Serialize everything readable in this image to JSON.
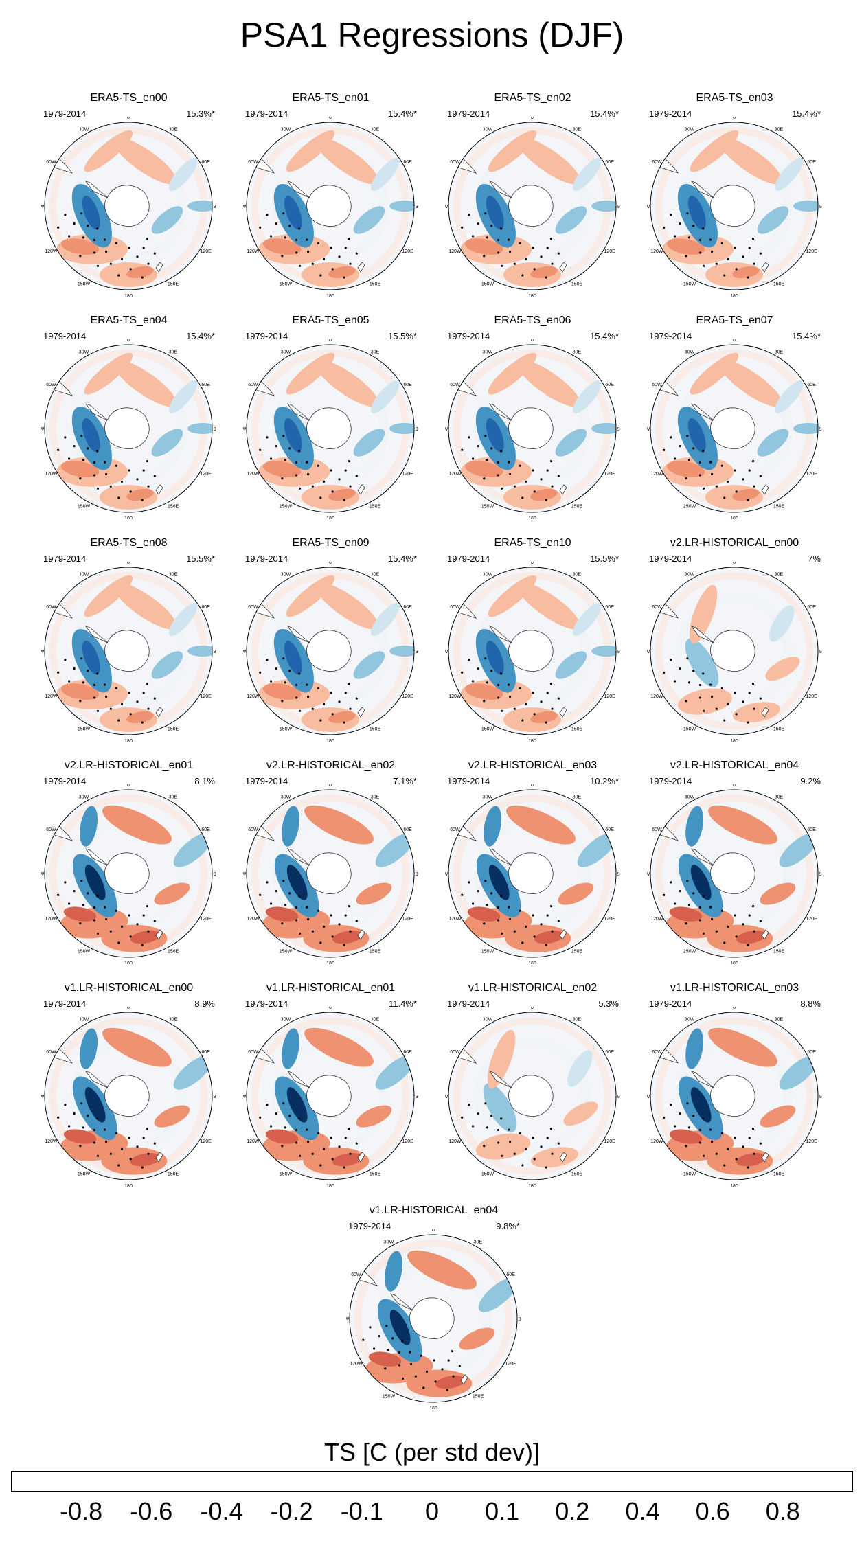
{
  "title": "PSA1 Regressions (DJF)",
  "lon_labels": [
    "0",
    "30E",
    "60E",
    "90E",
    "120E",
    "150E",
    "180",
    "150W",
    "120W",
    "90W",
    "60W",
    "30W"
  ],
  "panels": [
    {
      "title": "ERA5-TS_en00",
      "period": "1979-2014",
      "pct": "15.3%*",
      "style": "era"
    },
    {
      "title": "ERA5-TS_en01",
      "period": "1979-2014",
      "pct": "15.4%*",
      "style": "era"
    },
    {
      "title": "ERA5-TS_en02",
      "period": "1979-2014",
      "pct": "15.4%*",
      "style": "era"
    },
    {
      "title": "ERA5-TS_en03",
      "period": "1979-2014",
      "pct": "15.4%*",
      "style": "era"
    },
    {
      "title": "ERA5-TS_en04",
      "period": "1979-2014",
      "pct": "15.4%*",
      "style": "era"
    },
    {
      "title": "ERA5-TS_en05",
      "period": "1979-2014",
      "pct": "15.5%*",
      "style": "era"
    },
    {
      "title": "ERA5-TS_en06",
      "period": "1979-2014",
      "pct": "15.4%*",
      "style": "era"
    },
    {
      "title": "ERA5-TS_en07",
      "period": "1979-2014",
      "pct": "15.4%*",
      "style": "era"
    },
    {
      "title": "ERA5-TS_en08",
      "period": "1979-2014",
      "pct": "15.5%*",
      "style": "era"
    },
    {
      "title": "ERA5-TS_en09",
      "period": "1979-2014",
      "pct": "15.4%*",
      "style": "era"
    },
    {
      "title": "ERA5-TS_en10",
      "period": "1979-2014",
      "pct": "15.5%*",
      "style": "era"
    },
    {
      "title": "v2.LR-HISTORICAL_en00",
      "period": "1979-2014",
      "pct": "7%",
      "style": "weak"
    },
    {
      "title": "v2.LR-HISTORICAL_en01",
      "period": "1979-2014",
      "pct": "8.1%",
      "style": "model"
    },
    {
      "title": "v2.LR-HISTORICAL_en02",
      "period": "1979-2014",
      "pct": "7.1%*",
      "style": "model"
    },
    {
      "title": "v2.LR-HISTORICAL_en03",
      "period": "1979-2014",
      "pct": "10.2%*",
      "style": "model"
    },
    {
      "title": "v2.LR-HISTORICAL_en04",
      "period": "1979-2014",
      "pct": "9.2%",
      "style": "model"
    },
    {
      "title": "v1.LR-HISTORICAL_en00",
      "period": "1979-2014",
      "pct": "8.9%",
      "style": "model"
    },
    {
      "title": "v1.LR-HISTORICAL_en01",
      "period": "1979-2014",
      "pct": "11.4%*",
      "style": "model"
    },
    {
      "title": "v1.LR-HISTORICAL_en02",
      "period": "1979-2014",
      "pct": "5.3%",
      "style": "weak"
    },
    {
      "title": "v1.LR-HISTORICAL_en03",
      "period": "1979-2014",
      "pct": "8.8%",
      "style": "model"
    },
    {
      "title": "v1.LR-HISTORICAL_en04",
      "period": "1979-2014",
      "pct": "9.8%*",
      "style": "model"
    }
  ],
  "colorbar": {
    "title": "TS [C (per std dev)]",
    "colors": [
      "#053061",
      "#2166ac",
      "#4393c3",
      "#92c5de",
      "#d1e5f0",
      "#f0f4f7",
      "#fde6dc",
      "#f8bca0",
      "#ee9271",
      "#d6604d",
      "#b2182b",
      "#67001f"
    ],
    "labels": [
      "-0.8",
      "-0.6",
      "-0.4",
      "-0.2",
      "-0.1",
      "0",
      "0.1",
      "0.2",
      "0.4",
      "0.6",
      "0.8"
    ]
  }
}
